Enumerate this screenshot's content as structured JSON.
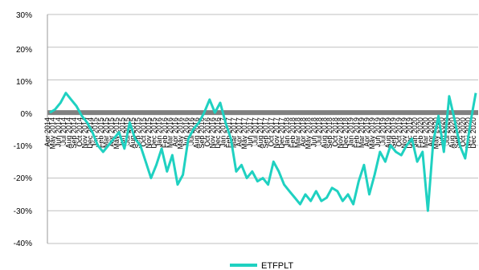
{
  "chart_data": {
    "type": "line",
    "title": "",
    "xlabel": "",
    "ylabel": "",
    "ylim": [
      -40,
      30
    ],
    "y_ticks": [
      "30%",
      "20%",
      "10%",
      "0%",
      "-10%",
      "-20%",
      "-30%",
      "-40%"
    ],
    "y_tick_values": [
      30,
      20,
      10,
      0,
      -10,
      -20,
      -30,
      -40
    ],
    "grid": "horizontal",
    "legend_position": "bottom",
    "x_tick_labels": [
      "Apr 2014",
      "May 2014",
      "Jun 2014",
      "Jul 2014",
      "Aug 2014",
      "Sep 2014",
      "Oct 2014",
      "Nov 2014",
      "Dec 2014",
      "Jan 2015",
      "Feb 2015",
      "Mar 2015",
      "Apr 2015",
      "May 2015",
      "Jun 2015",
      "Jul 2015",
      "Aug 2015",
      "Sep 2015",
      "Oct 2015",
      "Nov 2015",
      "Dec 2015",
      "Jan 2016",
      "Feb 2016",
      "Mar 2016",
      "Apr 2016",
      "May 2016",
      "Jun 2016",
      "Jul 2016",
      "Aug 2016",
      "Sep 2016",
      "Oct 2016",
      "Nov 2016",
      "Dec 2016",
      "Jan 2017",
      "Feb 2017",
      "Mar 2017",
      "Apr 2017",
      "May 2017",
      "Jun 2017",
      "Jul 2017",
      "Aug 2017",
      "Sep 2017",
      "Oct 2017",
      "Nov 2017",
      "Dec 2017",
      "Jan 2018",
      "Feb 2018",
      "Mar 2018",
      "Apr 2018",
      "May 2018",
      "Jun 2018",
      "Jul 2018",
      "Aug 2018",
      "Sep 2018",
      "Oct 2018",
      "Nov 2018",
      "Dec 2018",
      "Jan 2019",
      "Feb 2019",
      "Mar 2019",
      "Apr 2019",
      "May 2019",
      "Jun 2019",
      "Jul 2019",
      "Aug 2019",
      "Sep 2019",
      "Oct 2019",
      "Nov 2019",
      "Dec 2019",
      "Jan 2020",
      "Feb 2020",
      "Mar 2020",
      "Apr 2020",
      "May 2020",
      "Jun 2020",
      "Jul 2020",
      "Aug 2020",
      "Sep 2020",
      "Oct 2020",
      "Nov 2020",
      "Dec 2020"
    ],
    "series": [
      {
        "name": "ETFPLT",
        "color": "#1fd1c1",
        "values": [
          0,
          1,
          3,
          6,
          4,
          2,
          -1,
          -3,
          -6,
          -10,
          -12,
          -10,
          -8,
          -6,
          -11,
          -3,
          -8,
          -10,
          -15,
          -20,
          -16,
          -11,
          -18,
          -13,
          -22,
          -19,
          -8,
          -5,
          -3,
          0,
          4,
          0,
          3,
          -3,
          -8,
          -18,
          -16,
          -20,
          -18,
          -21,
          -20,
          -22,
          -15,
          -18,
          -22,
          -24,
          -26,
          -28,
          -25,
          -27,
          -24,
          -27,
          -26,
          -23,
          -24,
          -27,
          -25,
          -28,
          -21,
          -16,
          -25,
          -19,
          -12,
          -15,
          -10,
          -12,
          -13,
          -10,
          -8,
          -15,
          -12,
          -30,
          -9,
          -1,
          -12,
          5,
          -2,
          -10,
          -14,
          -3,
          6
        ]
      }
    ]
  },
  "legend": {
    "label": "ETFPLT"
  },
  "colors": {
    "series": "#1fd1c1",
    "zero_line": "#808080",
    "grid": "#bfbfbf",
    "axis": "#999999"
  }
}
